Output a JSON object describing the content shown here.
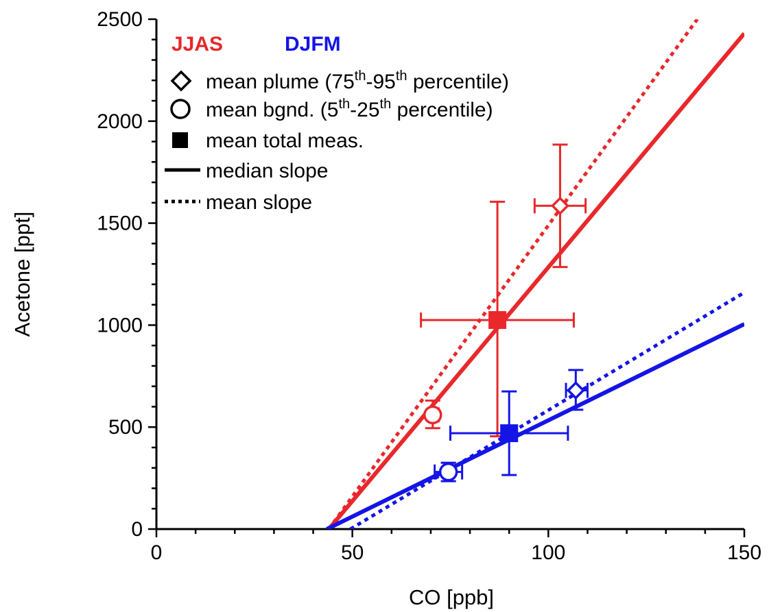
{
  "chart_data": {
    "type": "scatter",
    "xlabel": "CO [ppb]",
    "ylabel": "Acetone [ppt]",
    "xlim": [
      0,
      150
    ],
    "ylim": [
      0,
      2500
    ],
    "x_ticks": [
      0,
      50,
      100,
      150
    ],
    "y_ticks": [
      0,
      500,
      1000,
      1500,
      2000,
      2500
    ],
    "grid": false,
    "legend_position": "top-left",
    "seasons": [
      {
        "name": "JJAS",
        "color": "#e8282b"
      },
      {
        "name": "DJFM",
        "color": "#1414e6"
      }
    ],
    "legend": {
      "plume": {
        "text": "mean plume (75",
        "sup1": "th",
        "mid": "-95",
        "sup2": "th",
        "tail": " percentile)"
      },
      "bgnd": {
        "text": "mean bgnd. (5",
        "sup1": "th",
        "mid": "-25",
        "sup2": "th",
        "tail": " percentile)"
      },
      "total": "mean total meas.",
      "median": "median slope",
      "mean": "mean slope"
    },
    "series": [
      {
        "name": "JJAS",
        "color": "#e8282b",
        "plume": {
          "x": 103,
          "y": 1585,
          "xerr": [
            96.5,
            109.5
          ],
          "yerr": [
            1285,
            1885
          ]
        },
        "background": {
          "x": 70.5,
          "y": 560,
          "xerr": [
            69.5,
            72
          ],
          "yerr": [
            495,
            630
          ]
        },
        "total": {
          "x": 87,
          "y": 1025,
          "xerr": [
            67.5,
            106.5
          ],
          "yerr": [
            455,
            1605
          ]
        },
        "median_slope": {
          "x": [
            44,
            150
          ],
          "y": [
            0,
            2430
          ]
        },
        "mean_slope": {
          "x": [
            44,
            138
          ],
          "y": [
            0,
            2500
          ]
        }
      },
      {
        "name": "DJFM",
        "color": "#1414e6",
        "plume": {
          "x": 107,
          "y": 680,
          "xerr": [
            104.5,
            110
          ],
          "yerr": [
            585,
            780
          ]
        },
        "background": {
          "x": 74.5,
          "y": 280,
          "xerr": [
            71,
            78
          ],
          "yerr": [
            235,
            325
          ]
        },
        "total": {
          "x": 90,
          "y": 470,
          "xerr": [
            75,
            105
          ],
          "yerr": [
            265,
            675
          ]
        },
        "median_slope": {
          "x": [
            43.5,
            150
          ],
          "y": [
            0,
            1005
          ]
        },
        "mean_slope": {
          "x": [
            49.5,
            150
          ],
          "y": [
            0,
            1160
          ]
        }
      }
    ]
  }
}
